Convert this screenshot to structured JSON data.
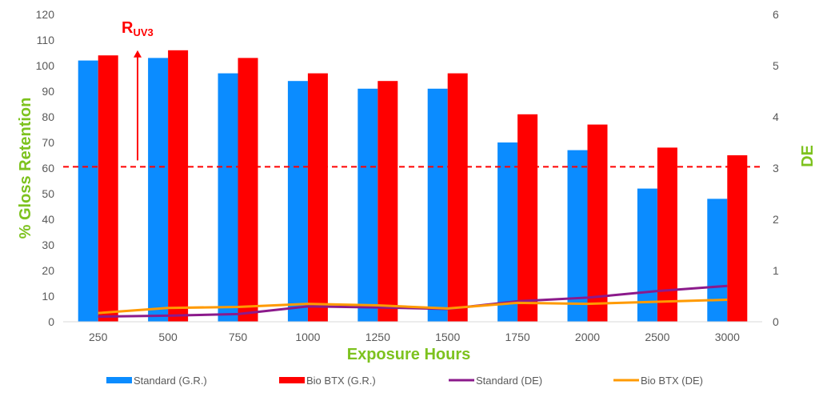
{
  "chart_data": {
    "type": "bar",
    "categories": [
      "250",
      "500",
      "750",
      "1000",
      "1250",
      "1500",
      "1750",
      "2000",
      "2500",
      "3000"
    ],
    "series": [
      {
        "name": "Standard (G.R.)",
        "kind": "bar",
        "axis": "left",
        "color": "#0b8cff",
        "values": [
          102,
          103,
          97,
          94,
          91,
          91,
          70,
          67,
          52,
          48
        ]
      },
      {
        "name": "Bio BTX (G.R.)",
        "kind": "bar",
        "axis": "left",
        "color": "#ff0000",
        "values": [
          104,
          106,
          103,
          97,
          94,
          97,
          81,
          77,
          68,
          65
        ]
      },
      {
        "name": "Standard (DE)",
        "kind": "line",
        "axis": "right",
        "color": "#8b1a8b",
        "values": [
          0.1,
          0.12,
          0.15,
          0.3,
          0.28,
          0.25,
          0.4,
          0.47,
          0.6,
          0.7
        ]
      },
      {
        "name": "Bio BTX (DE)",
        "kind": "line",
        "axis": "right",
        "color": "#ff9a00",
        "values": [
          0.17,
          0.27,
          0.29,
          0.35,
          0.32,
          0.26,
          0.37,
          0.35,
          0.39,
          0.43
        ]
      }
    ],
    "xlabel": "Exposure Hours",
    "ylabel": "% Gloss Retention",
    "y2label": "DE",
    "ylim": [
      0,
      120
    ],
    "y2lim": [
      0,
      6
    ],
    "yticks": [
      "0",
      "10",
      "20",
      "30",
      "40",
      "50",
      "60",
      "70",
      "80",
      "90",
      "100",
      "110",
      "120"
    ],
    "y2ticks": [
      "0",
      "1",
      "2",
      "3",
      "4",
      "5",
      "6"
    ],
    "threshold": {
      "value": 60.5,
      "color": "#ff0000",
      "style": "dashed"
    },
    "annotation": {
      "main": "R",
      "sub": "UV3",
      "arrow_from": 63,
      "arrow_to": 106
    },
    "axis_title_color": "#7dc21e",
    "grid": false,
    "legend_position": "bottom"
  }
}
